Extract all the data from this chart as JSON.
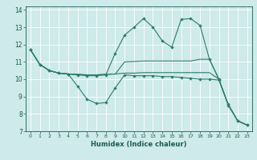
{
  "xlabel": "Humidex (Indice chaleur)",
  "xlim": [
    -0.5,
    23.5
  ],
  "ylim": [
    7,
    14.2
  ],
  "yticks": [
    7,
    8,
    9,
    10,
    11,
    12,
    13,
    14
  ],
  "xticks": [
    0,
    1,
    2,
    3,
    4,
    5,
    6,
    7,
    8,
    9,
    10,
    11,
    12,
    13,
    14,
    15,
    16,
    17,
    18,
    19,
    20,
    21,
    22,
    23
  ],
  "bg_color": "#ceeaea",
  "grid_color": "#b0d8d8",
  "line_color": "#2d7d6e",
  "line1": {
    "x": [
      0,
      1,
      2,
      3,
      4,
      5,
      6,
      7,
      8,
      9,
      10,
      11,
      12,
      13,
      14,
      15,
      16,
      17,
      18,
      19,
      20,
      21,
      22,
      23
    ],
    "y": [
      11.7,
      10.85,
      10.5,
      10.35,
      10.3,
      9.6,
      8.85,
      8.6,
      8.65,
      9.5,
      10.25,
      10.2,
      10.2,
      10.2,
      10.15,
      10.15,
      10.1,
      10.05,
      10.0,
      10.0,
      9.95,
      8.55,
      7.6,
      7.35
    ],
    "marker": true
  },
  "line2": {
    "x": [
      0,
      1,
      2,
      3,
      4,
      5,
      6,
      7,
      8,
      9,
      10,
      11,
      12,
      13,
      14,
      15,
      16,
      17,
      18,
      19,
      20,
      21,
      22,
      23
    ],
    "y": [
      11.7,
      10.85,
      10.5,
      10.35,
      10.3,
      10.25,
      10.2,
      10.2,
      10.25,
      11.5,
      12.55,
      13.0,
      13.5,
      13.0,
      12.2,
      11.85,
      13.45,
      13.5,
      13.1,
      11.15,
      10.0,
      8.5,
      7.6,
      7.35
    ],
    "marker": true
  },
  "line3": {
    "x": [
      0,
      1,
      2,
      3,
      4,
      5,
      6,
      7,
      8,
      9,
      10,
      11,
      12,
      13,
      14,
      15,
      16,
      17,
      18,
      19,
      20,
      21,
      22,
      23
    ],
    "y": [
      11.7,
      10.85,
      10.5,
      10.35,
      10.3,
      10.28,
      10.25,
      10.25,
      10.28,
      10.3,
      10.35,
      10.35,
      10.38,
      10.38,
      10.38,
      10.38,
      10.38,
      10.38,
      10.38,
      10.38,
      10.0,
      8.5,
      7.6,
      7.35
    ],
    "marker": false
  },
  "line4": {
    "x": [
      0,
      1,
      2,
      3,
      4,
      5,
      6,
      7,
      8,
      9,
      10,
      11,
      12,
      13,
      14,
      15,
      16,
      17,
      18,
      19,
      20,
      21,
      22,
      23
    ],
    "y": [
      11.7,
      10.85,
      10.5,
      10.35,
      10.3,
      10.28,
      10.25,
      10.25,
      10.28,
      10.3,
      11.0,
      11.02,
      11.05,
      11.05,
      11.05,
      11.05,
      11.05,
      11.05,
      11.15,
      11.15,
      10.0,
      8.5,
      7.6,
      7.35
    ],
    "marker": false
  }
}
